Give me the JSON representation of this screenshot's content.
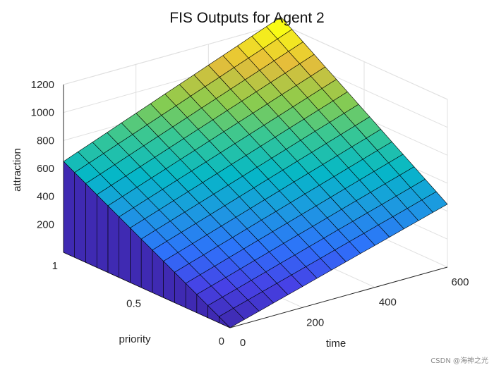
{
  "chart_data": {
    "type": "surface",
    "title": "FIS Outputs for Agent 2",
    "xlabel": "time",
    "ylabel": "priority",
    "zlabel": "attraction",
    "xlim": [
      0,
      600
    ],
    "ylim": [
      0,
      1
    ],
    "zlim": [
      0,
      1200
    ],
    "x_ticks": [
      "0",
      "200",
      "400",
      "600"
    ],
    "y_ticks": [
      "0",
      "0.5",
      "1"
    ],
    "z_ticks": [
      "200",
      "400",
      "600",
      "800",
      "1000",
      "1200"
    ],
    "x_grid": [
      0,
      40,
      80,
      120,
      160,
      200,
      240,
      280,
      320,
      360,
      400,
      440,
      480,
      520,
      560,
      600
    ],
    "y_grid": [
      0,
      0.0667,
      0.1333,
      0.2,
      0.2667,
      0.3333,
      0.4,
      0.4667,
      0.5333,
      0.6,
      0.6667,
      0.7333,
      0.8,
      0.8667,
      0.9333,
      1
    ],
    "z_corners": {
      "time_0_priority_0": 0,
      "time_600_priority_0": 450,
      "time_0_priority_1": 650,
      "time_600_priority_1": 1250
    },
    "colormap": "parula",
    "grid": true
  },
  "watermark": "CSDN @海神之光"
}
